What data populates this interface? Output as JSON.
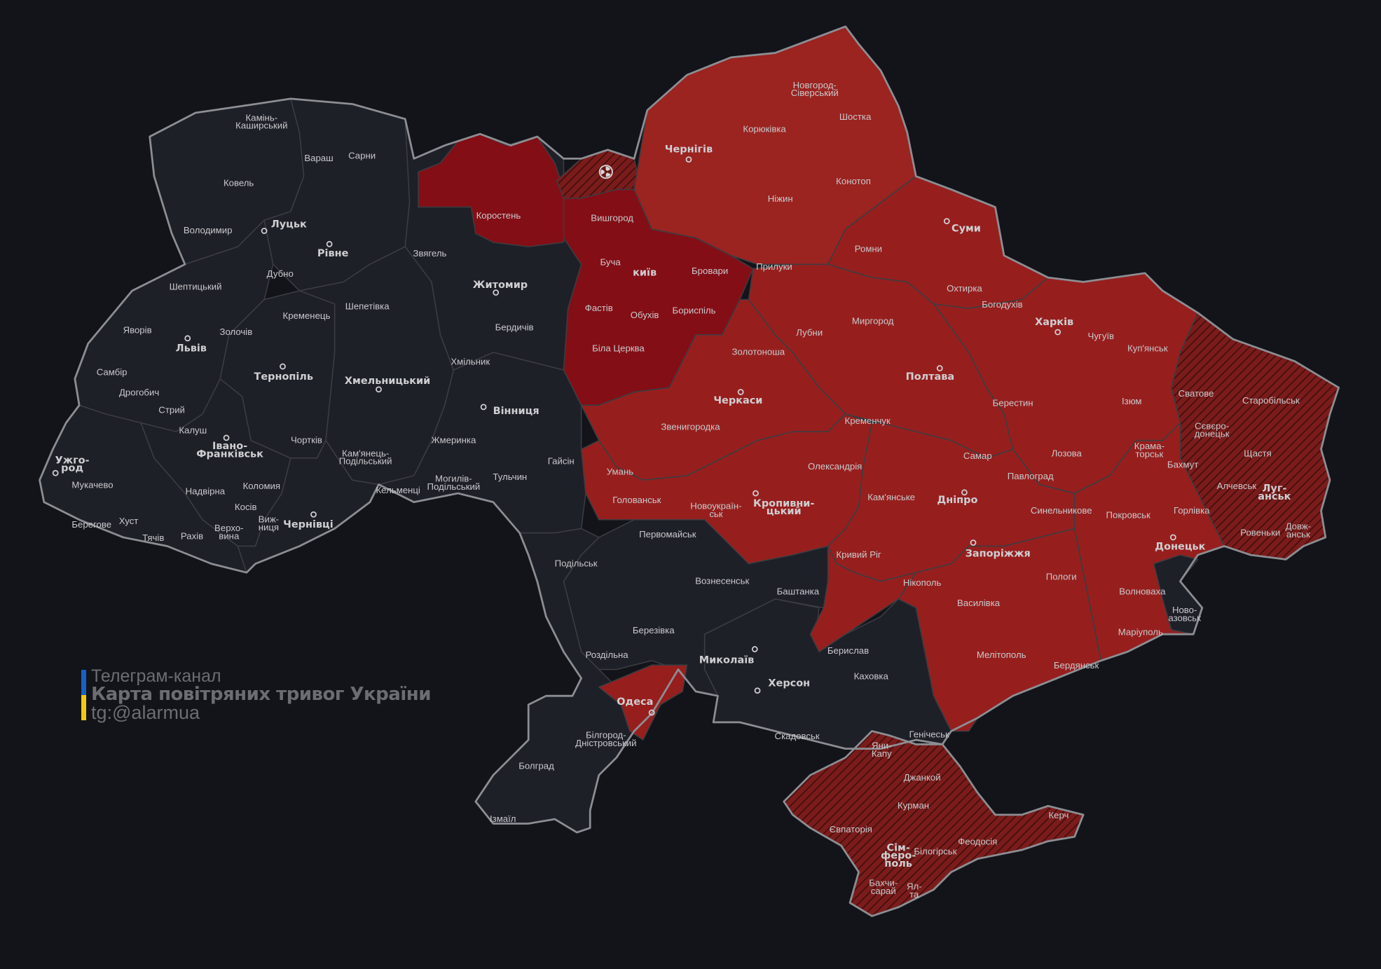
{
  "legend": {
    "line1": "Телеграм-канал",
    "line2": "Карта повітряних тривог України",
    "line3": "tg:@alarmua"
  },
  "colors": {
    "background": "#121419",
    "no_alert": "#1e2028",
    "alert": "#961f1e",
    "alert_dark": "#840e16",
    "occupied_hatched": "#7a1c1b",
    "flag_blue": "#1a5fc4",
    "flag_yellow": "#f2c80f"
  },
  "regions": {
    "volyn": "no_alert",
    "rivne": "no_alert",
    "lviv": "no_alert",
    "zakarpattia": "no_alert",
    "ivano_frankivsk": "no_alert",
    "ternopil": "no_alert",
    "khmelnytskyi": "no_alert",
    "chernivtsi": "no_alert",
    "zhytomyr": "no_alert",
    "korosten_district": "alert_dark",
    "vinnytsia": "no_alert",
    "kyiv": "alert_dark",
    "chornobyl_zone": "occupied_hatched",
    "chernihiv": "alert",
    "sumy": "alert",
    "kharkiv": "alert",
    "luhansk": "occupied_hatched",
    "donetsk": "alert",
    "poltava": "alert",
    "cherkasy": "alert",
    "kirovohrad": "alert",
    "dnipropetrovsk": "alert",
    "zaporizhzhia": "alert",
    "kherson": "no_alert",
    "kherson_north": "alert",
    "mykolaiv": "no_alert",
    "odesa": "no_alert",
    "odesa_district": "alert",
    "crimea": "occupied_hatched"
  },
  "icons": {
    "chornobyl": "radiation-icon",
    "city": "circle-marker-icon"
  },
  "map": {
    "centers": [
      [
        "Луцьк"
      ],
      [
        "Рівне"
      ],
      [
        "Львів"
      ],
      [
        "Тернопіль"
      ],
      [
        "Хмельницький"
      ],
      [
        "Житомир"
      ],
      [
        "Вінниця"
      ],
      [
        "Івано-",
        "Франківськ"
      ],
      [
        "Ужго-",
        "род"
      ],
      [
        "Чернівці"
      ],
      [
        "київ"
      ],
      [
        "Чернігів"
      ],
      [
        "Суми"
      ],
      [
        "Харків"
      ],
      [
        "Полтава"
      ],
      [
        "Черкаси"
      ],
      [
        "Кропивни-",
        "цький"
      ],
      [
        "Дніпро"
      ],
      [
        "Запоріжжя"
      ],
      [
        "Донецьк"
      ],
      [
        "Луг-",
        "анськ"
      ],
      [
        "Миколаїв"
      ],
      [
        "Херсон"
      ],
      [
        "Одеса"
      ],
      [
        "Сім-",
        "феро-",
        "поль"
      ]
    ],
    "districts": [
      [
        "Камінь-",
        "Каширський"
      ],
      [
        "Вараш"
      ],
      [
        "Сарни"
      ],
      [
        "Ковель"
      ],
      [
        "Володимир"
      ],
      [
        "Дубно"
      ],
      [
        "Шептицький"
      ],
      [
        "Кременець"
      ],
      [
        "Шепетівка"
      ],
      [
        "Звягель"
      ],
      [
        "Коростень"
      ],
      [
        "Яворів"
      ],
      [
        "Золочів"
      ],
      [
        "Самбір"
      ],
      [
        "Дрогобич"
      ],
      [
        "Стрий"
      ],
      [
        "Калуш"
      ],
      [
        "Бердичів"
      ],
      [
        "Хмільник"
      ],
      [
        "Чортків"
      ],
      [
        "Кам'янець-",
        "Подільський"
      ],
      [
        "Жмеринка"
      ],
      [
        "Гайсін"
      ],
      [
        "Тульчин"
      ],
      [
        "Могилів-",
        "Подільський"
      ],
      [
        "Кельменці"
      ],
      [
        "Мукачево"
      ],
      [
        "Надвірна"
      ],
      [
        "Коломия"
      ],
      [
        "Косів"
      ],
      [
        "Хуст"
      ],
      [
        "Берегове"
      ],
      [
        "Тячів"
      ],
      [
        "Рахів"
      ],
      [
        "Верхо-",
        "вина"
      ],
      [
        "Виж-",
        "ниця"
      ],
      [
        "Вишгород"
      ],
      [
        "Буча"
      ],
      [
        "Бровари"
      ],
      [
        "Фастів"
      ],
      [
        "Обухів"
      ],
      [
        "Бориспіль"
      ],
      [
        "Біла Церква"
      ],
      [
        "Новгород-",
        "Сіверський"
      ],
      [
        "Корюківка"
      ],
      [
        "Шостка"
      ],
      [
        "Конотоп"
      ],
      [
        "Ніжин"
      ],
      [
        "Прилуки"
      ],
      [
        "Ромни"
      ],
      [
        "Охтирка"
      ],
      [
        "Богодухів"
      ],
      [
        "Лубни"
      ],
      [
        "Миргород"
      ],
      [
        "Золотоноша"
      ],
      [
        "Чугуїв"
      ],
      [
        "Куп'янськ"
      ],
      [
        "Сватове"
      ],
      [
        "Старобільськ"
      ],
      [
        "Ізюм"
      ],
      [
        "Берестин"
      ],
      [
        "Кременчук"
      ],
      [
        "Звенигородка"
      ],
      [
        "Умань"
      ],
      [
        "Самар"
      ],
      [
        "Лозова"
      ],
      [
        "Крама-",
        "торськ"
      ],
      [
        "Сєвєро-",
        "донецьк"
      ],
      [
        "Щастя"
      ],
      [
        "Бахмут"
      ],
      [
        "Олександрія"
      ],
      [
        "Павлоград"
      ],
      [
        "Алчевськ"
      ],
      [
        "Голованськ"
      ],
      [
        "Новоукраїн-",
        "ськ"
      ],
      [
        "Кам'янське"
      ],
      [
        "Синельникове"
      ],
      [
        "Покровськ"
      ],
      [
        "Горлівка"
      ],
      [
        "Ровеньки"
      ],
      [
        "Довж-",
        "анськ"
      ],
      [
        "Первомайськ"
      ],
      [
        "Кривий Ріг"
      ],
      [
        "Подільськ"
      ],
      [
        "Нікополь"
      ],
      [
        "Пологи"
      ],
      [
        "Вознесенськ"
      ],
      [
        "Баштанка"
      ],
      [
        "Волноваха"
      ],
      [
        "Ново-",
        "азовськ"
      ],
      [
        "Василівка"
      ],
      [
        "Березівка"
      ],
      [
        "Маріуполь"
      ],
      [
        "Роздільна"
      ],
      [
        "Берислав"
      ],
      [
        "Мелітополь"
      ],
      [
        "Каховка"
      ],
      [
        "Бердянськ"
      ],
      [
        "Скадовськ"
      ],
      [
        "Генічеськ"
      ],
      [
        "Білгород-",
        "Дністровський"
      ],
      [
        "Болград"
      ],
      [
        "Ізмаїл"
      ],
      [
        "Яни-",
        "Капу"
      ],
      [
        "Джанкой"
      ],
      [
        "Курман"
      ],
      [
        "Євпаторія"
      ],
      [
        "Білогірськ"
      ],
      [
        "Феодосія"
      ],
      [
        "Керч"
      ],
      [
        "Бахчи-",
        "сарай"
      ],
      [
        "Ял-",
        "та"
      ]
    ]
  }
}
